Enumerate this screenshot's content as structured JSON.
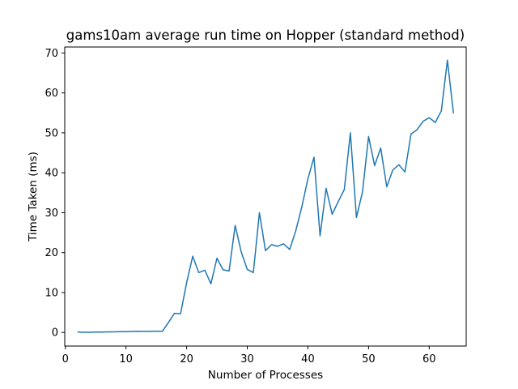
{
  "chart_data": {
    "type": "line",
    "title": "gams10am average run time on Hopper (standard method)",
    "xlabel": "Number of Processes",
    "ylabel": "Time Taken (ms)",
    "xlim": [
      -0.1,
      66.1
    ],
    "ylim": [
      -3.4,
      71.5
    ],
    "xticks": [
      0,
      10,
      20,
      30,
      40,
      50,
      60
    ],
    "yticks": [
      0,
      10,
      20,
      30,
      40,
      50,
      60,
      70
    ],
    "grid": false,
    "line_color": "#1f77b4",
    "series": [
      {
        "x": [
          2,
          3,
          4,
          5,
          6,
          7,
          8,
          9,
          10,
          11,
          12,
          13,
          14,
          15,
          16,
          17,
          18,
          19,
          20,
          21,
          22,
          23,
          24,
          25,
          26,
          27,
          28,
          29,
          30,
          31,
          32,
          33,
          34,
          35,
          36,
          37,
          38,
          39,
          40,
          41,
          42,
          43,
          44,
          45,
          46,
          47,
          48,
          49,
          50,
          51,
          52,
          53,
          54,
          55,
          56,
          57,
          58,
          59,
          60,
          61,
          62,
          63,
          64
        ],
        "y": [
          0.1,
          0.05,
          0.05,
          0.1,
          0.1,
          0.15,
          0.15,
          0.2,
          0.2,
          0.25,
          0.3,
          0.25,
          0.3,
          0.3,
          0.3,
          2.5,
          4.8,
          4.7,
          12.5,
          19.1,
          15.0,
          15.6,
          12.2,
          18.6,
          15.7,
          15.4,
          26.8,
          20.2,
          15.8,
          15.0,
          30.0,
          20.5,
          22.0,
          21.6,
          22.2,
          20.8,
          25.5,
          31.5,
          38.5,
          43.9,
          24.2,
          36.1,
          29.6,
          32.8,
          35.8,
          50.0,
          28.8,
          35.2,
          49.1,
          41.8,
          46.2,
          36.5,
          40.7,
          42.0,
          40.2,
          49.7,
          50.8,
          52.9,
          53.8,
          52.6,
          55.5,
          68.2,
          54.9
        ]
      }
    ]
  }
}
